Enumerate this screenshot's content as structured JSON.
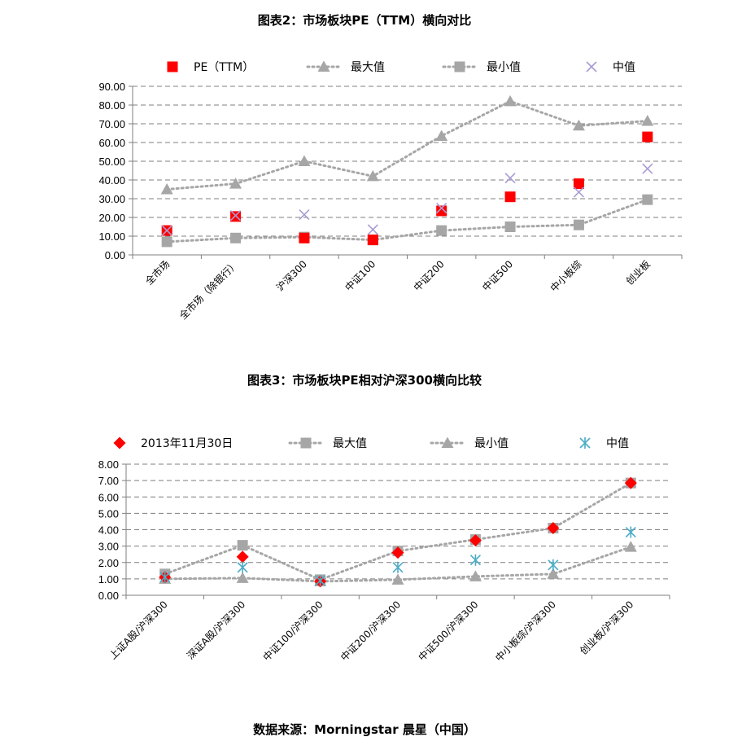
{
  "titles": {
    "chart1": "图表2：市场板块PE（TTM）横向对比",
    "chart2": "图表3：市场板块PE相对沪深300横向比较",
    "source": "数据来源：Morningstar 晨星（中国）"
  },
  "chart_data": [
    {
      "type": "line",
      "title": "图表2：市场板块PE（TTM）横向对比",
      "categories": [
        "全市场",
        "全市场（除银行）",
        "沪深300",
        "中证100",
        "中证200",
        "中证500",
        "中小板综",
        "创业板"
      ],
      "ylim": [
        0,
        90
      ],
      "yticks": [
        "0.00",
        "10.00",
        "20.00",
        "30.00",
        "40.00",
        "50.00",
        "60.00",
        "70.00",
        "80.00",
        "90.00"
      ],
      "grid": true,
      "legend_position": "top",
      "series": [
        {
          "name": "PE（TTM）",
          "marker": "square",
          "color": "#ff0000",
          "line": false,
          "values": [
            13,
            20.5,
            9,
            8,
            23.5,
            31,
            38,
            63
          ]
        },
        {
          "name": "最大值",
          "marker": "triangle",
          "color": "#a6a6a6",
          "line": true,
          "values": [
            35,
            38,
            50,
            42,
            63.5,
            82,
            69,
            71.5
          ]
        },
        {
          "name": "最小值",
          "marker": "square",
          "color": "#a6a6a6",
          "line": true,
          "values": [
            7,
            9,
            9.5,
            8,
            13,
            15,
            16,
            29.5
          ]
        },
        {
          "name": "中值",
          "marker": "x",
          "color": "#a99bd2",
          "line": false,
          "values": [
            13,
            21,
            21.5,
            13.5,
            25,
            41,
            33.5,
            46
          ]
        }
      ]
    },
    {
      "type": "line",
      "title": "图表3：市场板块PE相对沪深300横向比较",
      "categories": [
        "上证A股/沪深300",
        "深证A股/沪深300",
        "中证100/沪深300",
        "中证200/沪深300",
        "中证500/沪深300",
        "中小板综/沪深300",
        "创业板/沪深300"
      ],
      "ylim": [
        0,
        8
      ],
      "yticks": [
        "0.00",
        "1.00",
        "2.00",
        "3.00",
        "4.00",
        "5.00",
        "6.00",
        "7.00",
        "8.00"
      ],
      "grid": true,
      "legend_position": "top",
      "series": [
        {
          "name": "2013年11月30日",
          "marker": "diamond",
          "color": "#ff0000",
          "line": false,
          "values": [
            1.1,
            2.35,
            0.85,
            2.6,
            3.35,
            4.1,
            6.85
          ]
        },
        {
          "name": "最大值",
          "marker": "square",
          "color": "#a6a6a6",
          "line": true,
          "values": [
            1.3,
            3.05,
            0.95,
            2.7,
            3.4,
            4.1,
            6.85
          ]
        },
        {
          "name": "最小值",
          "marker": "triangle",
          "color": "#a6a6a6",
          "line": true,
          "values": [
            1.0,
            1.05,
            0.85,
            0.95,
            1.15,
            1.3,
            2.95
          ]
        },
        {
          "name": "中值",
          "marker": "asterisk",
          "color": "#4bacc6",
          "line": false,
          "values": [
            1.1,
            1.7,
            0.9,
            1.7,
            2.15,
            1.85,
            3.85
          ]
        }
      ]
    }
  ]
}
